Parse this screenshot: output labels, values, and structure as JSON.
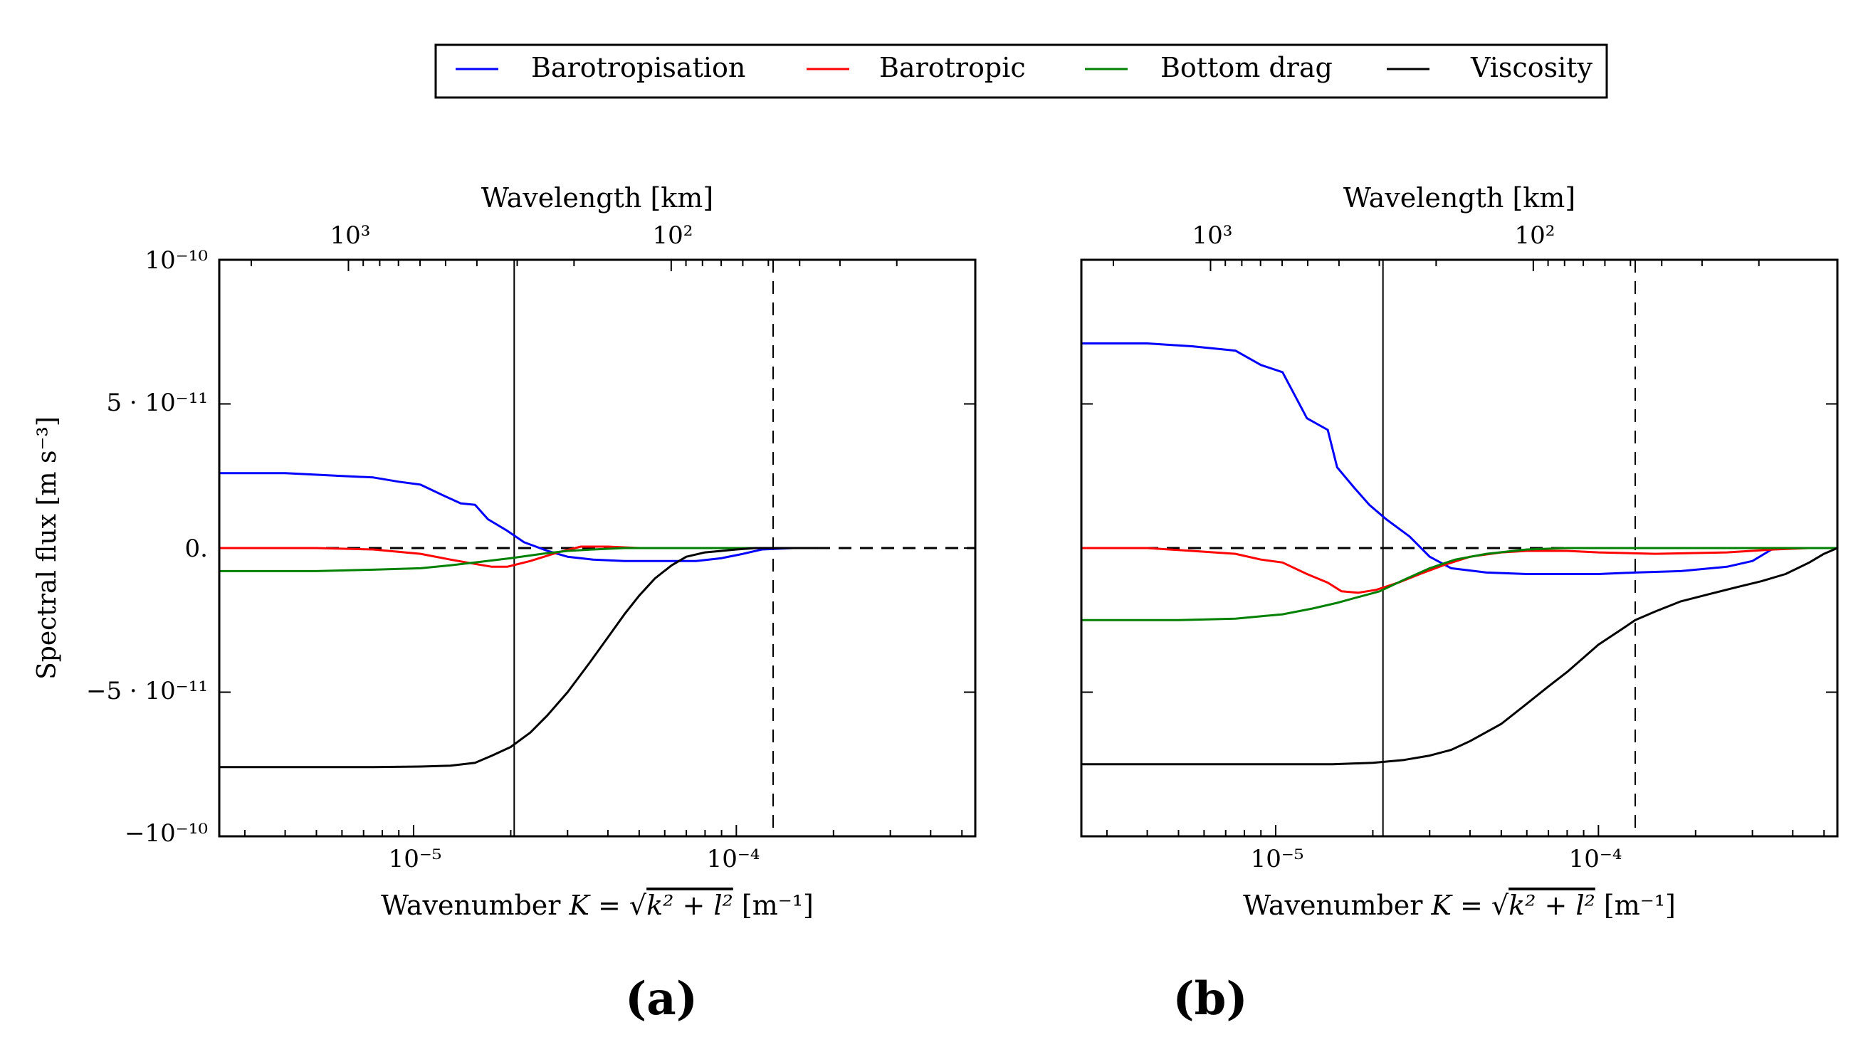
{
  "legend": {
    "placement": "top-center",
    "entries": [
      {
        "name": "Barotropisation",
        "color": "#0000ff"
      },
      {
        "name": "Barotropic",
        "color": "#ff0000"
      },
      {
        "name": "Bottom drag",
        "color": "#008000"
      },
      {
        "name": "Viscosity",
        "color": "#000000"
      }
    ]
  },
  "axes_text": {
    "top_xlabel": "Wavelength [km]",
    "xlabel_prefix": "Wavenumber ",
    "xlabel_var": "K",
    "xlabel_eq": " = ",
    "xlabel_rad": "k² + l²",
    "xlabel_unit": " [m⁻¹]",
    "ylabel": "Spectral flux [m s⁻³]",
    "ytick_labels": [
      "10⁻¹⁰",
      "5 · 10⁻¹¹",
      "0.",
      "−5 · 10⁻¹¹",
      "−10⁻¹⁰"
    ],
    "xtick_labels": [
      "10⁻⁵",
      "10⁻⁴"
    ],
    "top_tick_labels": [
      "10³",
      "10²"
    ]
  },
  "chart_data": [
    {
      "type": "line",
      "panel_label": "(a)",
      "xscale": "log",
      "xlim": [
        2.5e-06,
        0.00055
      ],
      "ylim": [
        -1e-10,
        1e-10
      ],
      "xticks": [
        1e-05,
        0.0001
      ],
      "yticks": [
        1e-10,
        5e-11,
        0,
        -5e-11,
        -1e-10
      ],
      "top_axis": {
        "label": "Wavelength [km]",
        "ticks_km": [
          1000,
          100
        ]
      },
      "vlines": [
        {
          "x": 2.05e-05,
          "style": "solid"
        },
        {
          "x": 0.00013,
          "style": "dashed"
        }
      ],
      "hline": {
        "y": 0,
        "style": "dashed"
      },
      "grid": false,
      "series": [
        {
          "name": "Barotropisation",
          "color": "#0000ff",
          "x": [
            2.5e-06,
            4e-06,
            6e-06,
            7.5e-06,
            9e-06,
            1.05e-05,
            1.25e-05,
            1.4e-05,
            1.55e-05,
            1.7e-05,
            1.95e-05,
            2.2e-05,
            2.6e-05,
            3e-05,
            3.6e-05,
            4.5e-05,
            6e-05,
            7.5e-05,
            9e-05,
            0.000105,
            0.00012,
            0.00015,
            0.00018
          ],
          "y": [
            2.6e-11,
            2.6e-11,
            2.5e-11,
            2.45e-11,
            2.3e-11,
            2.2e-11,
            1.8e-11,
            1.55e-11,
            1.5e-11,
            1e-11,
            6e-12,
            2e-12,
            -1e-12,
            -3e-12,
            -4e-12,
            -4.5e-12,
            -4.5e-12,
            -4.5e-12,
            -3.5e-12,
            -2e-12,
            -5e-13,
            0,
            0
          ]
        },
        {
          "name": "Barotropic",
          "color": "#ff0000",
          "x": [
            2.5e-06,
            5e-06,
            7.5e-06,
            1.05e-05,
            1.3e-05,
            1.55e-05,
            1.75e-05,
            1.95e-05,
            2.3e-05,
            2.8e-05,
            3.3e-05,
            4e-05,
            5e-05,
            7e-05,
            0.0001,
            0.00015,
            0.00018
          ],
          "y": [
            0,
            0,
            -5e-13,
            -2e-12,
            -4e-12,
            -5.5e-12,
            -6.5e-12,
            -6.5e-12,
            -4.5e-12,
            -1.5e-12,
            5e-13,
            5e-13,
            0,
            0,
            0,
            0,
            0
          ]
        },
        {
          "name": "Bottom drag",
          "color": "#008000",
          "x": [
            2.5e-06,
            5e-06,
            7.5e-06,
            1.05e-05,
            1.3e-05,
            1.55e-05,
            2e-05,
            2.5e-05,
            3e-05,
            3.6e-05,
            4.5e-05,
            6e-05,
            8e-05,
            0.00011,
            0.00015,
            0.00018
          ],
          "y": [
            -8e-12,
            -8e-12,
            -7.5e-12,
            -7e-12,
            -6e-12,
            -5e-12,
            -3.5e-12,
            -2e-12,
            -1e-12,
            -5e-13,
            0,
            0,
            0,
            0,
            0,
            0
          ]
        },
        {
          "name": "Viscosity",
          "color": "#000000",
          "x": [
            2.5e-06,
            5e-06,
            7.5e-06,
            1.05e-05,
            1.3e-05,
            1.55e-05,
            1.75e-05,
            2e-05,
            2.3e-05,
            2.6e-05,
            3e-05,
            3.5e-05,
            4e-05,
            4.5e-05,
            5e-05,
            5.6e-05,
            6.3e-05,
            7e-05,
            8e-05,
            9e-05,
            0.0001,
            0.000115,
            0.00013,
            0.00015,
            0.00018
          ],
          "y": [
            -7.6e-11,
            -7.6e-11,
            -7.6e-11,
            -7.58e-11,
            -7.55e-11,
            -7.45e-11,
            -7.2e-11,
            -6.9e-11,
            -6.4e-11,
            -5.8e-11,
            -5e-11,
            -4e-11,
            -3.1e-11,
            -2.3e-11,
            -1.65e-11,
            -1.05e-11,
            -6e-12,
            -3e-12,
            -1.5e-12,
            -1e-12,
            -5e-13,
            0,
            0,
            0,
            0
          ]
        }
      ]
    },
    {
      "type": "line",
      "panel_label": "(b)",
      "xscale": "log",
      "xlim": [
        2.5e-06,
        0.00055
      ],
      "ylim": [
        -1e-10,
        1e-10
      ],
      "xticks": [
        1e-05,
        0.0001
      ],
      "yticks": [
        1e-10,
        5e-11,
        0,
        -5e-11,
        -1e-10
      ],
      "top_axis": {
        "label": "Wavelength [km]",
        "ticks_km": [
          1000,
          100
        ]
      },
      "vlines": [
        {
          "x": 2.15e-05,
          "style": "solid"
        },
        {
          "x": 0.00013,
          "style": "dashed"
        }
      ],
      "hline": {
        "y": 0,
        "style": "dashed"
      },
      "grid": false,
      "series": [
        {
          "name": "Barotropisation",
          "color": "#0000ff",
          "x": [
            2.5e-06,
            4e-06,
            5.5e-06,
            7.5e-06,
            9e-06,
            1.05e-05,
            1.25e-05,
            1.45e-05,
            1.55e-05,
            1.75e-05,
            1.95e-05,
            2.2e-05,
            2.6e-05,
            3e-05,
            3.5e-05,
            4.5e-05,
            6e-05,
            8e-05,
            0.0001,
            0.00013,
            0.00018,
            0.00025,
            0.0003,
            0.00035,
            0.00045,
            0.00055
          ],
          "y": [
            7.1e-11,
            7.1e-11,
            7e-11,
            6.85e-11,
            6.35e-11,
            6.1e-11,
            4.5e-11,
            4.1e-11,
            2.8e-11,
            2.1e-11,
            1.5e-11,
            1e-11,
            4e-12,
            -3e-12,
            -7e-12,
            -8.5e-12,
            -9e-12,
            -9e-12,
            -9e-12,
            -8.5e-12,
            -8e-12,
            -6.5e-12,
            -4.5e-12,
            0,
            0,
            0
          ]
        },
        {
          "name": "Barotropic",
          "color": "#ff0000",
          "x": [
            2.5e-06,
            4e-06,
            5.5e-06,
            7.5e-06,
            9e-06,
            1.05e-05,
            1.25e-05,
            1.45e-05,
            1.6e-05,
            1.8e-05,
            2.05e-05,
            2.4e-05,
            2.8e-05,
            3.3e-05,
            4e-05,
            5e-05,
            6e-05,
            8e-05,
            0.0001,
            0.00015,
            0.00025,
            0.00035,
            0.00045,
            0.00055
          ],
          "y": [
            0,
            0,
            -1e-12,
            -2e-12,
            -4e-12,
            -5e-12,
            -9e-12,
            -1.2e-11,
            -1.5e-11,
            -1.55e-11,
            -1.45e-11,
            -1.2e-11,
            -9e-12,
            -6e-12,
            -3e-12,
            -1.5e-12,
            -1e-12,
            -1e-12,
            -1.5e-12,
            -2e-12,
            -1.5e-12,
            -5e-13,
            0,
            0
          ]
        },
        {
          "name": "Bottom drag",
          "color": "#008000",
          "x": [
            2.5e-06,
            5e-06,
            7.5e-06,
            1.05e-05,
            1.3e-05,
            1.55e-05,
            1.8e-05,
            2.1e-05,
            2.5e-05,
            3e-05,
            3.6e-05,
            4.5e-05,
            6e-05,
            8e-05,
            0.0001,
            0.00015,
            0.00025,
            0.00055
          ],
          "y": [
            -2.5e-11,
            -2.5e-11,
            -2.45e-11,
            -2.3e-11,
            -2.1e-11,
            -1.9e-11,
            -1.7e-11,
            -1.5e-11,
            -1.1e-11,
            -7e-12,
            -4e-12,
            -2e-12,
            -5e-13,
            0,
            0,
            0,
            0,
            0
          ]
        },
        {
          "name": "Viscosity",
          "color": "#000000",
          "x": [
            2.5e-06,
            5e-06,
            1e-05,
            1.5e-05,
            2e-05,
            2.5e-05,
            3e-05,
            3.5e-05,
            4e-05,
            5e-05,
            6e-05,
            7e-05,
            8e-05,
            9e-05,
            0.0001,
            0.000115,
            0.00013,
            0.00015,
            0.00018,
            0.00022,
            0.00027,
            0.00032,
            0.00038,
            0.00045,
            0.0005,
            0.00055
          ],
          "y": [
            -7.5e-11,
            -7.5e-11,
            -7.5e-11,
            -7.5e-11,
            -7.45e-11,
            -7.35e-11,
            -7.2e-11,
            -7e-11,
            -6.7e-11,
            -6.1e-11,
            -5.4e-11,
            -4.8e-11,
            -4.3e-11,
            -3.8e-11,
            -3.35e-11,
            -2.9e-11,
            -2.5e-11,
            -2.2e-11,
            -1.85e-11,
            -1.6e-11,
            -1.35e-11,
            -1.15e-11,
            -9e-12,
            -5e-12,
            -2e-12,
            0
          ]
        }
      ]
    }
  ]
}
